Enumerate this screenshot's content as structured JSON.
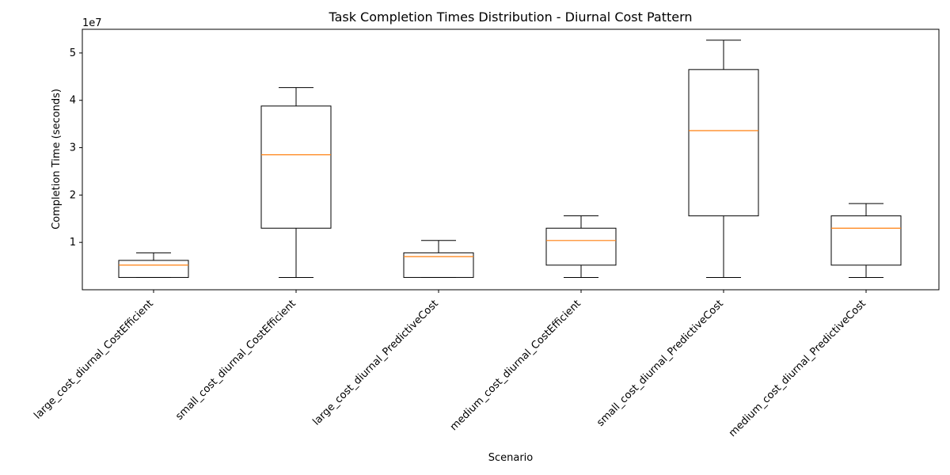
{
  "chart_data": {
    "type": "box",
    "title": "Task Completion Times Distribution - Diurnal Cost Pattern",
    "xlabel": "Scenario",
    "ylabel": "Completion Time (seconds)",
    "y_offset_label": "1e7",
    "y_scale": 10000000,
    "ylim": [
      0,
      55000000
    ],
    "y_ticks": [
      10000000,
      20000000,
      30000000,
      40000000,
      50000000
    ],
    "y_tick_labels": [
      "1",
      "2",
      "3",
      "4",
      "5"
    ],
    "categories": [
      "large_cost_diurnal_CostEfficient",
      "small_cost_diurnal_CostEfficient",
      "large_cost_diurnal_PredictiveCost",
      "medium_cost_diurnal_CostEfficient",
      "small_cost_diurnal_PredictiveCost",
      "medium_cost_diurnal_PredictiveCost"
    ],
    "boxes": [
      {
        "whisker_low": 2600000,
        "q1": 2600000,
        "median": 5200000,
        "q3": 6200000,
        "whisker_high": 7800000
      },
      {
        "whisker_low": 2600000,
        "q1": 13000000,
        "median": 28500000,
        "q3": 38800000,
        "whisker_high": 42700000
      },
      {
        "whisker_low": 2600000,
        "q1": 2600000,
        "median": 7000000,
        "q3": 7800000,
        "whisker_high": 10400000
      },
      {
        "whisker_low": 2600000,
        "q1": 5200000,
        "median": 10400000,
        "q3": 13000000,
        "whisker_high": 15600000
      },
      {
        "whisker_low": 2600000,
        "q1": 15600000,
        "median": 33600000,
        "q3": 46500000,
        "whisker_high": 52700000
      },
      {
        "whisker_low": 2600000,
        "q1": 5200000,
        "median": 13000000,
        "q3": 15600000,
        "whisker_high": 18200000
      }
    ],
    "colors": {
      "box": "#000000",
      "median": "#ff7f0e",
      "axis": "#000000"
    }
  }
}
